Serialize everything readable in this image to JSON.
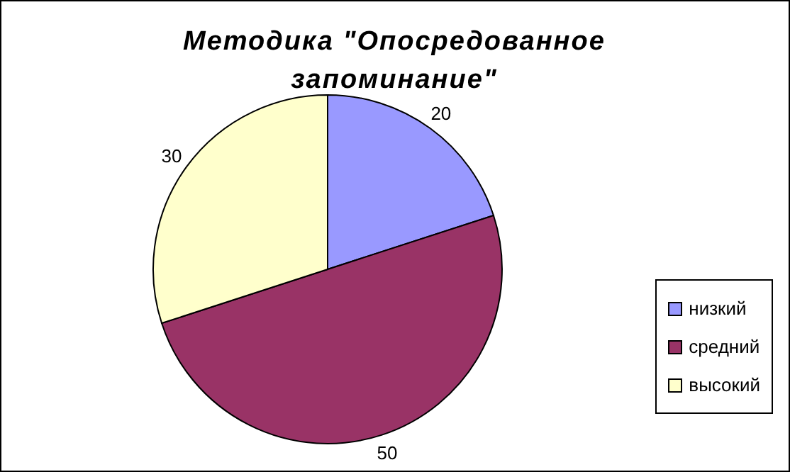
{
  "chart_data": {
    "type": "pie",
    "title": "Методика \"Опосредованное запоминание\"",
    "categories": [
      "низкий",
      "средний",
      "высокий"
    ],
    "values": [
      20,
      50,
      30
    ],
    "colors": [
      "#9999ff",
      "#993366",
      "#ffffcc"
    ],
    "data_labels": true,
    "legend": "bottom right"
  }
}
